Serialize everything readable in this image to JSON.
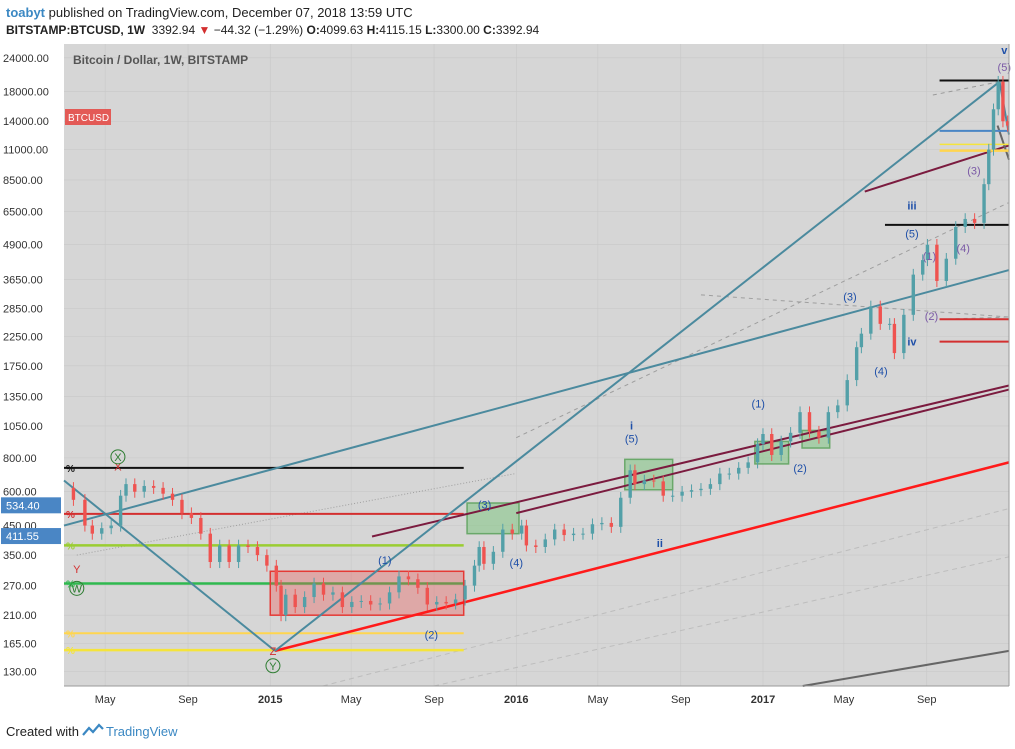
{
  "header": {
    "user": "toabyt",
    "published": "published on TradingView.com, December 07, 2018 13:59 UTC",
    "symbol": "BITSTAMP:BTCUSD, 1W",
    "last": "3392.94",
    "change": "−44.32 (−1.29%)",
    "o_label": "O:",
    "o": "4099.63",
    "h_label": "H:",
    "h": "4115.15",
    "l_label": "L:",
    "l": "3300.00",
    "c_label": "C:",
    "c": "3392.94"
  },
  "footer": {
    "created": "Created with",
    "brand": "TradingView"
  },
  "colors": {
    "up": "#53a0a8",
    "down": "#ef5350",
    "grid": "#c8c8c8",
    "plot_bg": "#d6d6d6"
  },
  "chart_data": {
    "type": "candlestick",
    "title": "Bitcoin / Dollar, 1W, BITSTAMP",
    "symbol_badge": "BTCUSD",
    "y_scale": "log",
    "y_ticks": [
      "24000.00",
      "18000.00",
      "14000.00",
      "11000.00",
      "8500.00",
      "6500.00",
      "4900.00",
      "3650.00",
      "2850.00",
      "2250.00",
      "1750.00",
      "1350.00",
      "1050.00",
      "800.00",
      "600.00",
      "450.00",
      "350.00",
      "270.00",
      "210.00",
      "165.00",
      "130.00"
    ],
    "y_tick_values": [
      24000,
      18000,
      14000,
      11000,
      8500,
      6500,
      4900,
      3650,
      2850,
      2250,
      1750,
      1350,
      1050,
      800,
      600,
      450,
      350,
      270,
      210,
      165,
      130
    ],
    "price_badges": [
      {
        "label": "534.40",
        "value": 534.4
      },
      {
        "label": "411.55",
        "value": 411.55
      }
    ],
    "x_ticks": [
      {
        "label": "May",
        "date": "2014-05-01",
        "bold": false
      },
      {
        "label": "Sep",
        "date": "2014-09-01",
        "bold": false
      },
      {
        "label": "2015",
        "date": "2015-01-01",
        "bold": true
      },
      {
        "label": "May",
        "date": "2015-05-01",
        "bold": false
      },
      {
        "label": "Sep",
        "date": "2015-09-01",
        "bold": false
      },
      {
        "label": "2016",
        "date": "2016-01-01",
        "bold": true
      },
      {
        "label": "May",
        "date": "2016-05-01",
        "bold": false
      },
      {
        "label": "Sep",
        "date": "2016-09-01",
        "bold": false
      },
      {
        "label": "2017",
        "date": "2017-01-01",
        "bold": true
      },
      {
        "label": "May",
        "date": "2017-05-01",
        "bold": false
      },
      {
        "label": "Sep",
        "date": "2017-09-01",
        "bold": false
      }
    ],
    "x_range": [
      "2014-03-01",
      "2018-01-01"
    ],
    "y_range": [
      115,
      27000
    ],
    "price_path": [
      [
        "2014-03-01",
        620
      ],
      [
        "2014-03-15",
        560
      ],
      [
        "2014-04-01",
        450
      ],
      [
        "2014-04-12",
        420
      ],
      [
        "2014-04-26",
        440
      ],
      [
        "2014-05-10",
        450
      ],
      [
        "2014-05-24",
        580
      ],
      [
        "2014-06-01",
        640
      ],
      [
        "2014-06-14",
        600
      ],
      [
        "2014-06-28",
        630
      ],
      [
        "2014-07-12",
        620
      ],
      [
        "2014-07-26",
        590
      ],
      [
        "2014-08-09",
        560
      ],
      [
        "2014-08-23",
        500
      ],
      [
        "2014-09-06",
        480
      ],
      [
        "2014-09-20",
        420
      ],
      [
        "2014-10-04",
        330
      ],
      [
        "2014-10-18",
        380
      ],
      [
        "2014-11-01",
        330
      ],
      [
        "2014-11-15",
        380
      ],
      [
        "2014-11-29",
        375
      ],
      [
        "2014-12-13",
        350
      ],
      [
        "2014-12-27",
        320
      ],
      [
        "2015-01-10",
        270
      ],
      [
        "2015-01-17",
        210
      ],
      [
        "2015-01-24",
        250
      ],
      [
        "2015-02-07",
        225
      ],
      [
        "2015-02-21",
        245
      ],
      [
        "2015-03-07",
        275
      ],
      [
        "2015-03-21",
        250
      ],
      [
        "2015-04-04",
        255
      ],
      [
        "2015-04-18",
        225
      ],
      [
        "2015-05-02",
        235
      ],
      [
        "2015-05-16",
        237
      ],
      [
        "2015-05-30",
        230
      ],
      [
        "2015-06-13",
        232
      ],
      [
        "2015-06-27",
        255
      ],
      [
        "2015-07-11",
        292
      ],
      [
        "2015-07-25",
        285
      ],
      [
        "2015-08-08",
        265
      ],
      [
        "2015-08-22",
        230
      ],
      [
        "2015-09-05",
        235
      ],
      [
        "2015-09-19",
        232
      ],
      [
        "2015-10-03",
        240
      ],
      [
        "2015-10-17",
        270
      ],
      [
        "2015-10-31",
        320
      ],
      [
        "2015-11-07",
        375
      ],
      [
        "2015-11-14",
        325
      ],
      [
        "2015-11-28",
        360
      ],
      [
        "2015-12-12",
        435
      ],
      [
        "2015-12-26",
        420
      ],
      [
        "2016-01-09",
        450
      ],
      [
        "2016-01-16",
        380
      ],
      [
        "2016-01-30",
        375
      ],
      [
        "2016-02-13",
        400
      ],
      [
        "2016-02-27",
        435
      ],
      [
        "2016-03-12",
        415
      ],
      [
        "2016-03-26",
        420
      ],
      [
        "2016-04-09",
        420
      ],
      [
        "2016-04-23",
        455
      ],
      [
        "2016-05-07",
        460
      ],
      [
        "2016-05-21",
        445
      ],
      [
        "2016-06-04",
        570
      ],
      [
        "2016-06-18",
        720
      ],
      [
        "2016-06-25",
        640
      ],
      [
        "2016-07-09",
        660
      ],
      [
        "2016-07-23",
        655
      ],
      [
        "2016-08-06",
        580
      ],
      [
        "2016-08-20",
        580
      ],
      [
        "2016-09-03",
        600
      ],
      [
        "2016-09-17",
        608
      ],
      [
        "2016-10-01",
        615
      ],
      [
        "2016-10-15",
        640
      ],
      [
        "2016-10-29",
        700
      ],
      [
        "2016-11-12",
        700
      ],
      [
        "2016-11-26",
        735
      ],
      [
        "2016-12-10",
        770
      ],
      [
        "2016-12-24",
        900
      ],
      [
        "2017-01-01",
        980
      ],
      [
        "2017-01-14",
        820
      ],
      [
        "2017-01-28",
        920
      ],
      [
        "2017-02-11",
        990
      ],
      [
        "2017-02-25",
        1180
      ],
      [
        "2017-03-11",
        1000
      ],
      [
        "2017-03-25",
        950
      ],
      [
        "2017-04-08",
        1180
      ],
      [
        "2017-04-22",
        1250
      ],
      [
        "2017-05-06",
        1550
      ],
      [
        "2017-05-20",
        2050
      ],
      [
        "2017-05-27",
        2300
      ],
      [
        "2017-06-10",
        2900
      ],
      [
        "2017-06-24",
        2500
      ],
      [
        "2017-07-08",
        2500
      ],
      [
        "2017-07-15",
        1950
      ],
      [
        "2017-07-29",
        2700
      ],
      [
        "2017-08-12",
        3800
      ],
      [
        "2017-08-26",
        4300
      ],
      [
        "2017-09-02",
        4900
      ],
      [
        "2017-09-16",
        3600
      ],
      [
        "2017-09-30",
        4350
      ],
      [
        "2017-10-14",
        5700
      ],
      [
        "2017-10-28",
        6100
      ],
      [
        "2017-11-11",
        5900
      ],
      [
        "2017-11-25",
        8200
      ],
      [
        "2017-12-02",
        11000
      ],
      [
        "2017-12-09",
        15500
      ],
      [
        "2017-12-16",
        19600
      ],
      [
        "2017-12-23",
        14000
      ],
      [
        "2017-12-30",
        13500
      ]
    ],
    "annotations": [
      {
        "text": "X",
        "date": "2014-05-20",
        "price": 720,
        "color": "#d32f2f"
      },
      {
        "text": "X",
        "date": "2014-05-20",
        "price": 780,
        "color": "#2e7d32",
        "circled": true
      },
      {
        "text": "Y",
        "date": "2014-03-20",
        "price": 300,
        "color": "#d32f2f"
      },
      {
        "text": "W",
        "date": "2014-03-20",
        "price": 255,
        "color": "#2e7d32",
        "circled": true
      },
      {
        "text": "Z",
        "date": "2015-01-05",
        "price": 150,
        "color": "#d32f2f"
      },
      {
        "text": "Y",
        "date": "2015-01-05",
        "price": 132,
        "color": "#2e7d32",
        "circled": true
      },
      {
        "text": "(1)",
        "date": "2015-06-20",
        "price": 325,
        "color": "#1e4fa8"
      },
      {
        "text": "(2)",
        "date": "2015-08-28",
        "price": 172,
        "color": "#1e4fa8"
      },
      {
        "text": "(3)",
        "date": "2015-11-15",
        "price": 520,
        "color": "#1e4fa8"
      },
      {
        "text": "(4)",
        "date": "2016-01-01",
        "price": 318,
        "color": "#1e4fa8"
      },
      {
        "text": "i",
        "date": "2016-06-20",
        "price": 1020,
        "color": "#1e4fa8",
        "bold": true,
        "size": 15
      },
      {
        "text": "(5)",
        "date": "2016-06-20",
        "price": 910,
        "color": "#1e4fa8"
      },
      {
        "text": "ii",
        "date": "2016-08-01",
        "price": 375,
        "color": "#1e4fa8",
        "bold": true,
        "size": 15
      },
      {
        "text": "(1)",
        "date": "2016-12-25",
        "price": 1230,
        "color": "#1e4fa8"
      },
      {
        "text": "(2)",
        "date": "2017-02-25",
        "price": 710,
        "color": "#1e4fa8"
      },
      {
        "text": "(3)",
        "date": "2017-05-10",
        "price": 3050,
        "color": "#1e4fa8"
      },
      {
        "text": "(4)",
        "date": "2017-06-25",
        "price": 1620,
        "color": "#1e4fa8"
      },
      {
        "text": "iii",
        "date": "2017-08-10",
        "price": 6600,
        "color": "#1e4fa8",
        "bold": true,
        "size": 15
      },
      {
        "text": "(5)",
        "date": "2017-08-10",
        "price": 5200,
        "color": "#1e4fa8"
      },
      {
        "text": "iv",
        "date": "2017-08-10",
        "price": 2080,
        "color": "#1e4fa8",
        "bold": true,
        "size": 15
      },
      {
        "text": "(1)",
        "date": "2017-09-05",
        "price": 4300,
        "color": "#7b5aa6"
      },
      {
        "text": "(2)",
        "date": "2017-09-08",
        "price": 2580,
        "color": "#7b5aa6"
      },
      {
        "text": "(4)",
        "date": "2017-10-25",
        "price": 4600,
        "color": "#7b5aa6"
      },
      {
        "text": "(3)",
        "date": "2017-11-10",
        "price": 8900,
        "color": "#7b5aa6"
      },
      {
        "text": "(5)",
        "date": "2017-12-25",
        "price": 21500,
        "color": "#7b5aa6"
      },
      {
        "text": "v",
        "date": "2017-12-25",
        "price": 24800,
        "color": "#1e4fa8",
        "bold": true,
        "size": 15
      }
    ]
  }
}
